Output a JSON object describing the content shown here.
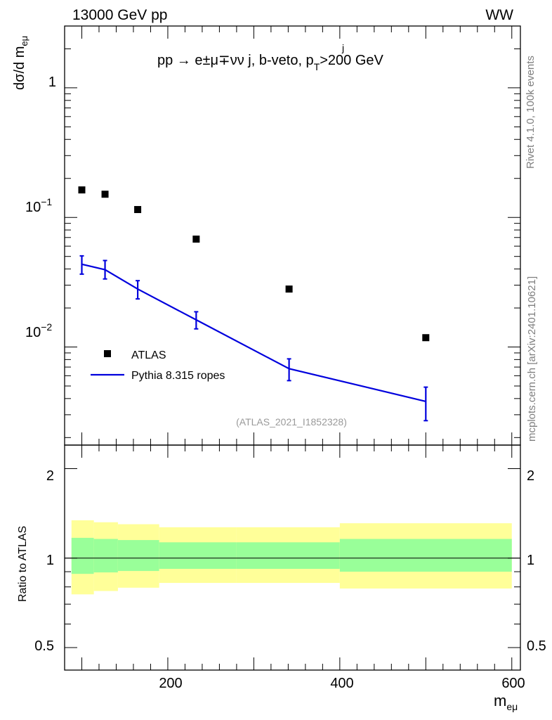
{
  "header": {
    "energy_label": "13000 GeV pp",
    "process_label": "WW",
    "title_main": "pp → e±μ∓νν j, b-veto, p",
    "title_pt_sup": "j",
    "title_pt_sub": "T",
    "title_cut": ">200 GeV"
  },
  "side_labels": {
    "rivet": "Rivet 4.1.0,  100k events",
    "mcplots": "mcplots.cern.ch [arXiv:2401.10621]"
  },
  "analysis_id": "(ATLAS_2021_I1852328)",
  "main_panel": {
    "ylabel": "dσ/d m",
    "ylabel_sub": "eμ",
    "ytick_1": "1",
    "ytick_01_base": "10",
    "ytick_01_exp": "−1",
    "ytick_001_base": "10",
    "ytick_001_exp": "−2"
  },
  "ratio_panel": {
    "ylabel": "Ratio to ATLAS",
    "ytick_labels": [
      "2",
      "1",
      "0.5"
    ]
  },
  "x_axis": {
    "label": "m",
    "label_sub": "eμ",
    "tick_labels": [
      "200",
      "400",
      "600"
    ]
  },
  "legend": {
    "atlas": "ATLAS",
    "pythia": "Pythia 8.315 ropes"
  },
  "colors": {
    "mc_line": "#0000dd",
    "band_inner": "#99ff99",
    "band_outer": "#ffff99",
    "data_marker": "#000000"
  },
  "chart_data": {
    "type": "scatter",
    "xlabel": "m_eμ",
    "ylabel": "dσ/d m_eμ",
    "xlim": [
      80,
      610
    ],
    "ylim": [
      0.00175,
      3.0
    ],
    "y_scale": "log",
    "ratio_ylim": [
      0.42,
      2.4
    ],
    "ratio_scale": "log",
    "legend_position": "bottom-left",
    "series": [
      {
        "name": "ATLAS",
        "style": "markers",
        "x": [
          100,
          127,
          165,
          233,
          341,
          500
        ],
        "y": [
          0.163,
          0.151,
          0.115,
          0.068,
          0.028,
          0.0118
        ]
      },
      {
        "name": "Pythia 8.315 ropes",
        "style": "line-errorbars",
        "x": [
          100,
          127,
          165,
          233,
          341,
          500
        ],
        "y": [
          0.0435,
          0.0395,
          0.028,
          0.0162,
          0.0068,
          0.0038
        ],
        "y_low": [
          0.0365,
          0.0335,
          0.0235,
          0.0138,
          0.0055,
          0.0027
        ],
        "y_high": [
          0.0505,
          0.0465,
          0.0325,
          0.0187,
          0.0081,
          0.0049
        ]
      }
    ],
    "ratio_bands": {
      "edges": [
        88,
        114,
        142,
        190,
        280,
        400,
        600
      ],
      "inner_low": [
        0.885,
        0.895,
        0.905,
        0.92,
        0.92,
        0.9,
        0.9
      ],
      "inner_high": [
        1.17,
        1.16,
        1.15,
        1.13,
        1.13,
        1.16,
        1.16
      ],
      "outer_low": [
        0.755,
        0.775,
        0.795,
        0.825,
        0.825,
        0.79,
        0.79
      ],
      "outer_high": [
        1.34,
        1.32,
        1.3,
        1.27,
        1.27,
        1.31,
        1.31
      ]
    }
  }
}
